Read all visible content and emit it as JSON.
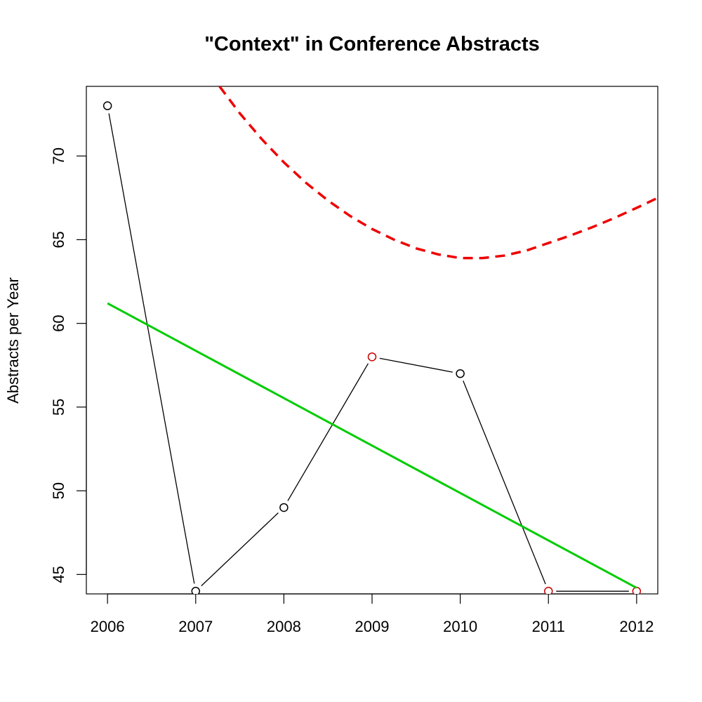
{
  "chart_data": {
    "type": "line",
    "title": "\"Context\" in Conference Abstracts",
    "xlabel": "",
    "ylabel": "Abstracts per Year",
    "x_ticks": [
      2006,
      2007,
      2008,
      2009,
      2010,
      2011,
      2012
    ],
    "y_ticks": [
      45,
      50,
      55,
      60,
      65,
      70
    ],
    "xlim": [
      2005.76,
      2012.24
    ],
    "ylim": [
      43.84,
      74.16
    ],
    "grid": false,
    "legend": "none",
    "series": [
      {
        "type": "line-points",
        "color": "#000000",
        "x": [
          2006,
          2007,
          2008,
          2009,
          2010,
          2011,
          2012
        ],
        "y": [
          73,
          44,
          49,
          58,
          57,
          44,
          44
        ],
        "point_colors": [
          "#000000",
          "#000000",
          "#000000",
          "#cc0000",
          "#000000",
          "#cc0000",
          "#cc0000"
        ]
      },
      {
        "type": "trend-line",
        "color": "#00cc00",
        "x": [
          2006,
          2012
        ],
        "y": [
          61.2,
          44.2
        ]
      },
      {
        "type": "dashed-curve",
        "color": "#ee0000",
        "x": [
          2007.27,
          2007.5,
          2007.75,
          2008,
          2008.25,
          2008.5,
          2008.75,
          2009,
          2009.25,
          2009.5,
          2009.75,
          2010,
          2010.25,
          2010.5,
          2010.75,
          2011,
          2011.25,
          2011.5,
          2011.75,
          2012,
          2012.24
        ],
        "y": [
          74.16,
          72.55,
          71.0,
          69.62,
          68.4,
          67.34,
          66.42,
          65.64,
          65.0,
          64.48,
          64.12,
          63.9,
          63.9,
          64.05,
          64.35,
          64.8,
          65.25,
          65.75,
          66.3,
          66.9,
          67.5
        ]
      }
    ]
  }
}
